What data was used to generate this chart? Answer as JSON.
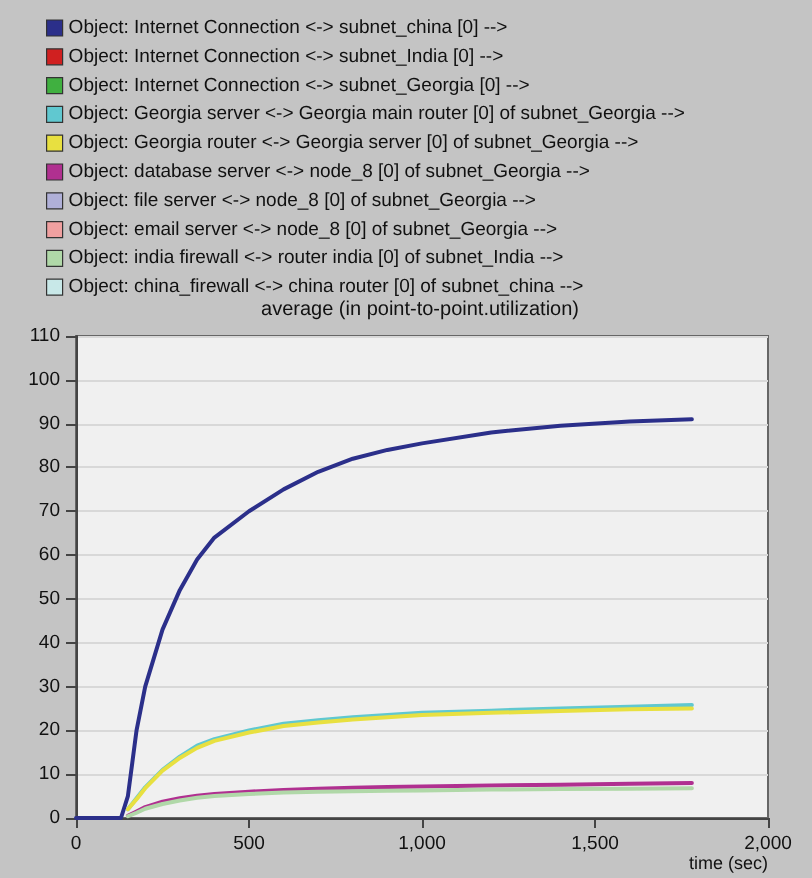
{
  "chart_data": {
    "type": "line",
    "title": "average (in point-to-point.utilization)",
    "xlabel": "time (sec)",
    "x": [
      0,
      130,
      150,
      175,
      200,
      250,
      300,
      350,
      400,
      500,
      600,
      700,
      800,
      900,
      1000,
      1200,
      1400,
      1600,
      1780
    ],
    "series": [
      {
        "name": "Object: Internet Connection <-> subnet_china [0] -->",
        "color": "#2b2f8a",
        "values": [
          0,
          0,
          5,
          20,
          30,
          43,
          52,
          59,
          64,
          70,
          75,
          79,
          82,
          84,
          85.5,
          88,
          89.5,
          90.5,
          91
        ]
      },
      {
        "name": "Object: Internet Connection <-> subnet_India [0] -->",
        "color": "#d02020",
        "values": [
          null,
          null,
          null,
          null,
          null,
          null,
          null,
          null,
          null,
          null,
          null,
          null,
          null,
          null,
          null,
          null,
          null,
          null,
          null
        ]
      },
      {
        "name": "Object: Internet Connection <-> subnet_Georgia [0] -->",
        "color": "#40b040",
        "values": [
          null,
          null,
          null,
          null,
          null,
          null,
          null,
          null,
          null,
          null,
          null,
          null,
          null,
          null,
          null,
          null,
          null,
          null,
          null
        ]
      },
      {
        "name": "Object: Georgia server <-> Georgia main router [0] of subnet_Georgia -->",
        "color": "#60c8d0",
        "values": [
          null,
          null,
          2,
          4.5,
          7,
          11,
          14,
          16.5,
          18,
          20,
          21.5,
          22.3,
          23,
          23.5,
          24,
          24.5,
          25,
          25.4,
          25.8
        ]
      },
      {
        "name": "Object: Georgia router <-> Georgia server [0] of subnet_Georgia -->",
        "color": "#e8e040",
        "values": [
          null,
          null,
          2,
          4.3,
          6.8,
          10.8,
          13.7,
          16,
          17.6,
          19.5,
          21,
          21.8,
          22.5,
          23,
          23.5,
          24,
          24.4,
          24.8,
          25
        ]
      },
      {
        "name": "Object: database server <-> node_8 [0] of subnet_Georgia -->",
        "color": "#b03090",
        "values": [
          null,
          null,
          0.5,
          1.5,
          2.5,
          3.7,
          4.5,
          5.1,
          5.5,
          6,
          6.4,
          6.7,
          6.9,
          7.1,
          7.2,
          7.4,
          7.6,
          7.8,
          8
        ]
      },
      {
        "name": "Object: file server <-> node_8 [0] of subnet_Georgia -->",
        "color": "#b0b0d8",
        "values": [
          null,
          null,
          null,
          null,
          null,
          null,
          null,
          null,
          null,
          null,
          null,
          null,
          null,
          null,
          null,
          null,
          null,
          null,
          null
        ]
      },
      {
        "name": "Object: email server <-> node_8 [0] of subnet_Georgia -->",
        "color": "#f0a0a0",
        "values": [
          null,
          null,
          null,
          null,
          null,
          null,
          null,
          null,
          null,
          null,
          null,
          null,
          null,
          null,
          null,
          null,
          null,
          null,
          null
        ]
      },
      {
        "name": "Object: india firewall <-> router india [0] of subnet_India -->",
        "color": "#b0d8a8",
        "values": [
          null,
          null,
          0.4,
          1.2,
          2.1,
          3.2,
          4,
          4.6,
          5,
          5.5,
          5.8,
          6,
          6.1,
          6.2,
          6.3,
          6.5,
          6.6,
          6.7,
          6.8
        ]
      },
      {
        "name": "Object: china_firewall <-> china router [0] of subnet_china -->",
        "color": "#c8e8e8",
        "values": [
          null,
          null,
          null,
          null,
          null,
          null,
          null,
          null,
          null,
          null,
          null,
          null,
          null,
          null,
          null,
          null,
          null,
          null,
          null
        ]
      }
    ],
    "xlim": [
      0,
      2000
    ],
    "xticks": [
      0,
      500,
      {
        "value": 1000,
        "label": "1,000"
      },
      {
        "value": 1500,
        "label": "1,500"
      },
      {
        "value": 2000,
        "label": "2,000"
      }
    ],
    "ylim": [
      0,
      110
    ],
    "yticks": [
      0,
      10,
      20,
      30,
      40,
      50,
      60,
      70,
      80,
      90,
      100,
      110
    ],
    "grid": "y",
    "legend": "top",
    "marker": "none",
    "line_style": "solid"
  }
}
